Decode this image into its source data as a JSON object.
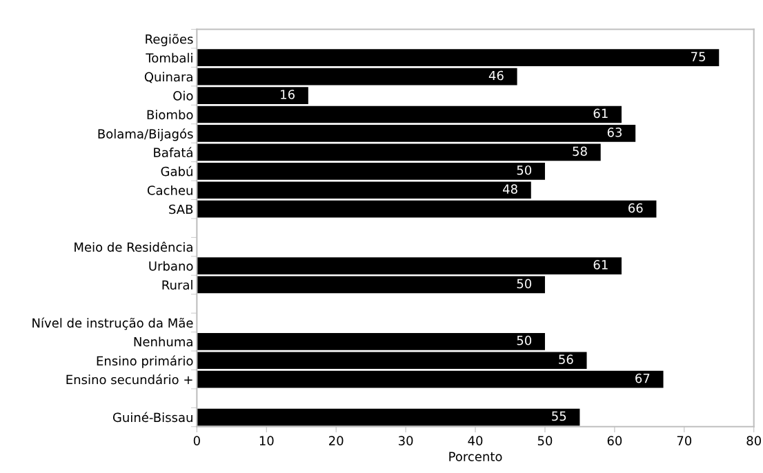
{
  "chart_data": {
    "type": "bar",
    "orientation": "horizontal",
    "xlabel": "Porcento",
    "categories": [
      "Regiões",
      "Tombali",
      "Quinara",
      "Oio",
      "Biombo",
      "Bolama/Bijagós",
      "Bafatá",
      "Gabú",
      "Cacheu",
      "SAB",
      null,
      "Meio de Residência",
      "Urbano",
      "Rural",
      null,
      "Nível de instrução da Mãe",
      "Nenhuma",
      "Ensino primário",
      "Ensino secundário +",
      null,
      "Guiné-Bissau"
    ],
    "values": [
      null,
      75,
      46,
      16,
      61,
      63,
      58,
      50,
      48,
      66,
      null,
      null,
      61,
      50,
      null,
      null,
      50,
      56,
      67,
      null,
      55
    ],
    "color": "#000000",
    "xlim": [
      0,
      80
    ],
    "xticks": [
      0,
      10,
      20,
      30,
      40,
      50,
      60,
      70,
      80
    ],
    "grid": false,
    "data_labels": true
  }
}
